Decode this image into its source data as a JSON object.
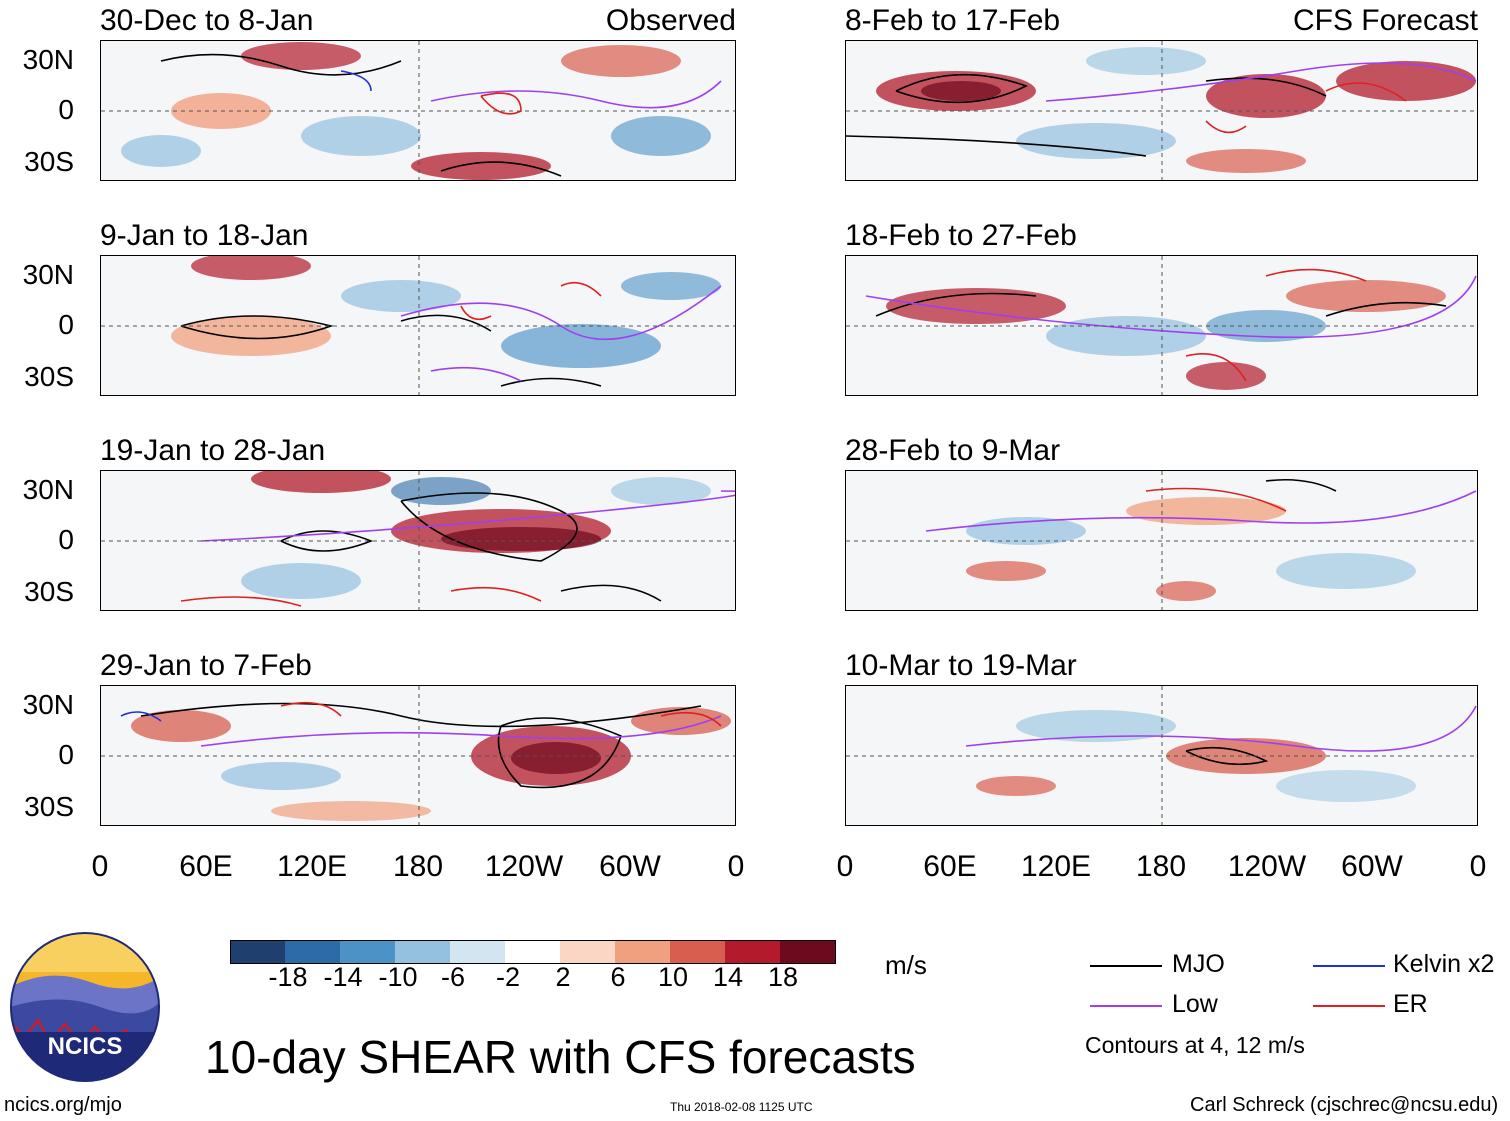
{
  "panels": [
    {
      "period": "30-Dec to 8-Jan",
      "source": "Observed"
    },
    {
      "period": "9-Jan to 18-Jan",
      "source": ""
    },
    {
      "period": "19-Jan to 28-Jan",
      "source": ""
    },
    {
      "period": "29-Jan to 7-Feb",
      "source": ""
    },
    {
      "period": "8-Feb to 17-Feb",
      "source": "CFS Forecast"
    },
    {
      "period": "18-Feb to 27-Feb",
      "source": ""
    },
    {
      "period": "28-Feb to 9-Mar",
      "source": ""
    },
    {
      "period": "10-Mar to 19-Mar",
      "source": ""
    }
  ],
  "lat_labels": [
    "30N",
    "0",
    "30S"
  ],
  "lon_labels": [
    "0",
    "60E",
    "120E",
    "180",
    "120W",
    "60W",
    "0"
  ],
  "colorbar": {
    "ticks": [
      "-18",
      "-14",
      "-10",
      "-6",
      "-2",
      "2",
      "6",
      "10",
      "14",
      "18"
    ],
    "colors": [
      "#1f3f6e",
      "#2c6aa8",
      "#4c92c7",
      "#93c1df",
      "#d2e5f1",
      "#ffffff",
      "#fbd6c4",
      "#f1a07f",
      "#d85e4f",
      "#b31b2c",
      "#6e0a1d"
    ],
    "units": "m/s"
  },
  "title": "10-day SHEAR with CFS forecasts",
  "legend": {
    "items": [
      {
        "label": "MJO",
        "color": "#000000"
      },
      {
        "label": "Kelvin x2",
        "color": "#1f2fd6"
      },
      {
        "label": "Low",
        "color": "#a03ff0"
      },
      {
        "label": "ER",
        "color": "#e02020"
      }
    ],
    "note": "Contours at 4, 12 m/s"
  },
  "logo": {
    "text": "NCICS"
  },
  "footer": {
    "left": "ncics.org/mjo",
    "center": "Thu 2018-02-08 1125 UTC",
    "right": "Carl Schreck (cjschrec@ncsu.edu)"
  }
}
